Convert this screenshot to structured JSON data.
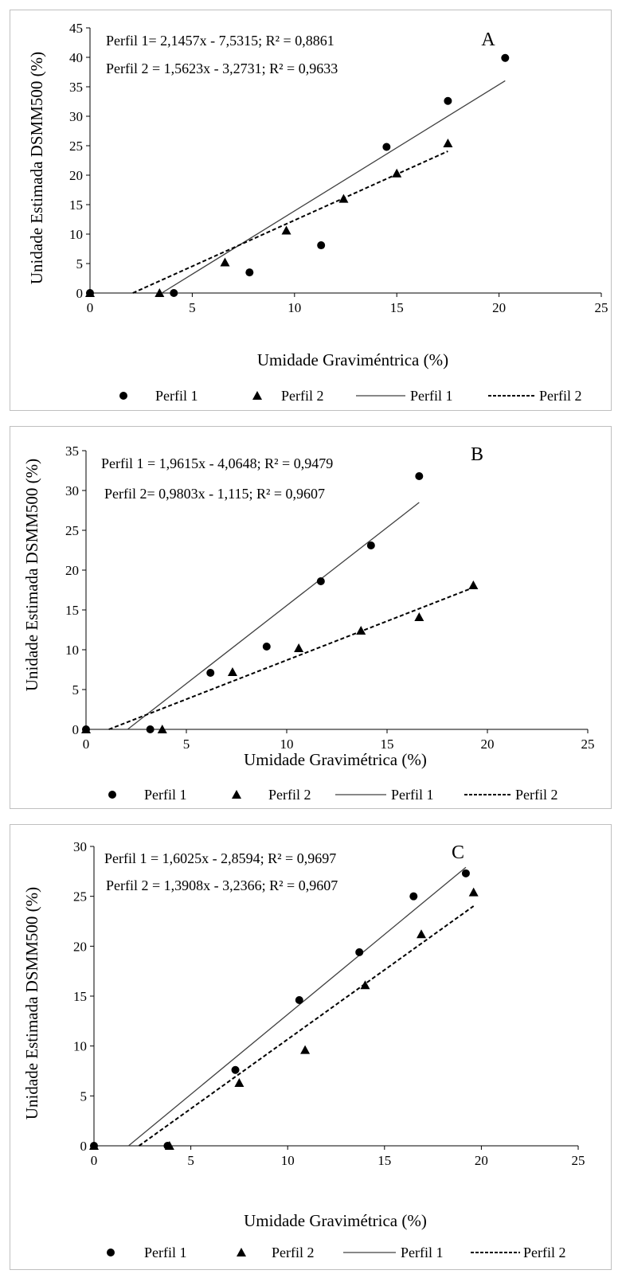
{
  "chart_data": [
    {
      "type": "scatter",
      "panel_label": "A",
      "xlabel": "Umidade Graviméntrica (%)",
      "ylabel": "Unidade Estimada DSMM500 (%)",
      "xlim": [
        0,
        25
      ],
      "ylim": [
        0,
        45
      ],
      "xticks": [
        "0",
        "5",
        "10",
        "15",
        "20",
        "25"
      ],
      "yticks": [
        "0",
        "5",
        "10",
        "15",
        "20",
        "25",
        "30",
        "35",
        "40",
        "45"
      ],
      "xtick_values": [
        0,
        5,
        10,
        15,
        20,
        25
      ],
      "ytick_values": [
        0,
        5,
        10,
        15,
        20,
        25,
        30,
        35,
        40,
        45
      ],
      "equations": [
        "Perfil 1= 2,1457x - 7,5315; R² = 0,8861",
        "Perfil 2 = 1,5623x - 3,2731; R² = 0,9633"
      ],
      "series": [
        {
          "name": "Perfil 1",
          "marker": "circle",
          "x": [
            0,
            4.1,
            7.8,
            11.3,
            14.5,
            17.5,
            20.3
          ],
          "y": [
            0,
            0,
            3.5,
            8.1,
            24.8,
            32.6,
            39.9
          ]
        },
        {
          "name": "Perfil 2",
          "marker": "triangle",
          "x": [
            0,
            3.4,
            6.6,
            9.6,
            12.4,
            15.0,
            17.5
          ],
          "y": [
            0,
            0,
            5.2,
            10.6,
            16.0,
            20.3,
            25.4
          ]
        }
      ],
      "trendlines": [
        {
          "name": "Perfil 1",
          "style": "solid",
          "slope": 2.1457,
          "intercept": -7.5315,
          "x_range": [
            0,
            20.3
          ]
        },
        {
          "name": "Perfil 2",
          "style": "dashed",
          "slope": 1.5623,
          "intercept": -3.2731,
          "x_range": [
            0,
            17.5
          ]
        }
      ],
      "legend": [
        "Perfil 1",
        "Perfil 2",
        "Perfil 1",
        "Perfil 2"
      ],
      "legend_position": "bottom"
    },
    {
      "type": "scatter",
      "panel_label": "B",
      "xlabel": "Umidade Gravimétrica (%)",
      "ylabel": "Unidade Estimada DSMM500 (%)",
      "xlim": [
        0,
        25
      ],
      "ylim": [
        0,
        35
      ],
      "xticks": [
        "0",
        "5",
        "10",
        "15",
        "20",
        "25"
      ],
      "yticks": [
        "0",
        "5",
        "10",
        "15",
        "20",
        "25",
        "30",
        "35"
      ],
      "xtick_values": [
        0,
        5,
        10,
        15,
        20,
        25
      ],
      "ytick_values": [
        0,
        5,
        10,
        15,
        20,
        25,
        30,
        35
      ],
      "equations": [
        "Perfil 1 = 1,9615x - 4,0648; R² = 0,9479",
        "Perfil 2= 0,9803x - 1,115; R² = 0,9607"
      ],
      "series": [
        {
          "name": "Perfil 1",
          "marker": "circle",
          "x": [
            0,
            3.2,
            6.2,
            9.0,
            11.7,
            14.2,
            16.6
          ],
          "y": [
            0,
            0,
            7.1,
            10.4,
            18.6,
            23.1,
            31.8
          ]
        },
        {
          "name": "Perfil 2",
          "marker": "triangle",
          "x": [
            0,
            3.8,
            7.3,
            10.6,
            13.7,
            16.6,
            19.3
          ],
          "y": [
            0,
            0,
            7.2,
            10.2,
            12.4,
            14.1,
            18.1
          ]
        }
      ],
      "trendlines": [
        {
          "name": "Perfil 1",
          "style": "solid",
          "slope": 1.9615,
          "intercept": -4.0648,
          "x_range": [
            0,
            16.6
          ]
        },
        {
          "name": "Perfil 2",
          "style": "dashed",
          "slope": 0.9803,
          "intercept": -1.115,
          "x_range": [
            0,
            19.3
          ]
        }
      ],
      "legend": [
        "Perfil 1",
        "Perfil 2",
        "Perfil 1",
        "Perfil 2"
      ],
      "legend_position": "bottom"
    },
    {
      "type": "scatter",
      "panel_label": "C",
      "xlabel": "Umidade Gravimétrica (%)",
      "ylabel": "Unidade Estimada DSMM500 (%)",
      "xlim": [
        0,
        25
      ],
      "ylim": [
        0,
        30
      ],
      "xticks": [
        "0",
        "5",
        "10",
        "15",
        "20",
        "25"
      ],
      "yticks": [
        "0",
        "5",
        "10",
        "15",
        "20",
        "25",
        "30"
      ],
      "xtick_values": [
        0,
        5,
        10,
        15,
        20,
        25
      ],
      "ytick_values": [
        0,
        5,
        10,
        15,
        20,
        25,
        30
      ],
      "equations": [
        "Perfil 1 = 1,6025x - 2,8594; R² = 0,9697",
        "Perfil 2 = 1,3908x - 3,2366; R² = 0,9607"
      ],
      "series": [
        {
          "name": "Perfil 1",
          "marker": "circle",
          "x": [
            0,
            3.8,
            7.3,
            10.6,
            13.7,
            16.5,
            19.2
          ],
          "y": [
            0,
            0,
            7.6,
            14.6,
            19.4,
            25.0,
            27.3
          ]
        },
        {
          "name": "Perfil 2",
          "marker": "triangle",
          "x": [
            0,
            3.9,
            7.5,
            10.9,
            14.0,
            16.9,
            19.6
          ],
          "y": [
            0,
            0,
            6.3,
            9.6,
            16.1,
            21.2,
            25.4
          ]
        }
      ],
      "trendlines": [
        {
          "name": "Perfil 1",
          "style": "solid",
          "slope": 1.6025,
          "intercept": -2.8594,
          "x_range": [
            0,
            19.2
          ]
        },
        {
          "name": "Perfil 2",
          "style": "dashed",
          "slope": 1.3908,
          "intercept": -3.2366,
          "x_range": [
            0,
            19.6
          ]
        }
      ],
      "legend": [
        "Perfil 1",
        "Perfil 2",
        "Perfil 1",
        "Perfil 2"
      ],
      "legend_position": "bottom"
    }
  ]
}
